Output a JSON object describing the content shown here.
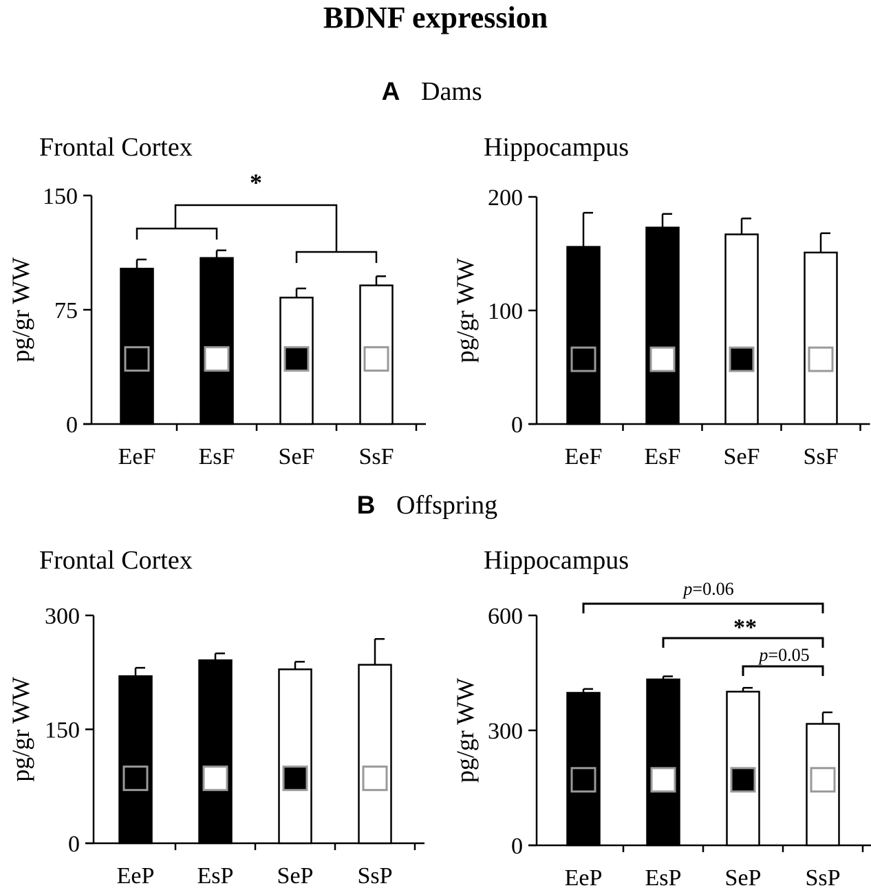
{
  "figure": {
    "title": "BDNF expression",
    "sections": [
      {
        "letter": "A",
        "label": "Dams"
      },
      {
        "letter": "B",
        "label": "Offspring"
      }
    ]
  },
  "colors": {
    "bar_solid": "#000000",
    "bar_open": "#ffffff",
    "outline": "#000000",
    "marker_border": "#999999"
  },
  "chart_data": [
    {
      "type": "bar",
      "title": "Frontal Cortex",
      "section": "A",
      "categories": [
        "EeF",
        "EsF",
        "SeF",
        "SsF"
      ],
      "values": [
        102,
        109,
        83,
        91
      ],
      "errors": [
        6,
        5,
        6,
        6
      ],
      "bar_fill": [
        "black",
        "black",
        "white",
        "white"
      ],
      "marker_fill": [
        "black",
        "white",
        "black",
        "white"
      ],
      "ylabel": "pg/gr WW",
      "ylim": [
        0,
        150
      ],
      "yticks": [
        0,
        75,
        150
      ],
      "significance": [
        {
          "label": "*",
          "groups": [
            [
              0,
              1
            ],
            [
              2,
              3
            ]
          ]
        }
      ]
    },
    {
      "type": "bar",
      "title": "Hippocampus",
      "section": "A",
      "categories": [
        "EeF",
        "EsF",
        "SeF",
        "SsF"
      ],
      "values": [
        156,
        173,
        167,
        151
      ],
      "errors": [
        30,
        12,
        14,
        17
      ],
      "bar_fill": [
        "black",
        "black",
        "white",
        "white"
      ],
      "marker_fill": [
        "black",
        "white",
        "black",
        "white"
      ],
      "ylabel": "pg/gr WW",
      "ylim": [
        0,
        200
      ],
      "yticks": [
        0,
        100,
        200
      ],
      "significance": []
    },
    {
      "type": "bar",
      "title": "Frontal Cortex",
      "section": "B",
      "categories": [
        "EeP",
        "EsP",
        "SeP",
        "SsP"
      ],
      "values": [
        220,
        241,
        229,
        235
      ],
      "errors": [
        11,
        9,
        10,
        34
      ],
      "bar_fill": [
        "black",
        "black",
        "white",
        "white"
      ],
      "marker_fill": [
        "black",
        "white",
        "black",
        "white"
      ],
      "ylabel": "pg/gr WW",
      "ylim": [
        0,
        300
      ],
      "yticks": [
        0,
        150,
        300
      ],
      "significance": []
    },
    {
      "type": "bar",
      "title": "Hippocampus",
      "section": "B",
      "categories": [
        "EeP",
        "EsP",
        "SeP",
        "SsP"
      ],
      "values": [
        398,
        433,
        401,
        317
      ],
      "errors": [
        10,
        8,
        10,
        30
      ],
      "bar_fill": [
        "black",
        "black",
        "white",
        "white"
      ],
      "marker_fill": [
        "black",
        "white",
        "black",
        "white"
      ],
      "ylabel": "pg/gr WW",
      "ylim": [
        0,
        600
      ],
      "yticks": [
        0,
        300,
        600
      ],
      "significance": [
        {
          "label": "p=0.06",
          "p_prefix": "p",
          "p_value": "=0.06",
          "groups": [
            [
              0
            ],
            [
              3
            ]
          ]
        },
        {
          "label": "**",
          "groups": [
            [
              1
            ],
            [
              3
            ]
          ]
        },
        {
          "label": "p=0.05",
          "p_prefix": "p",
          "p_value": "=0.05",
          "groups": [
            [
              2
            ],
            [
              3
            ]
          ]
        }
      ]
    }
  ]
}
